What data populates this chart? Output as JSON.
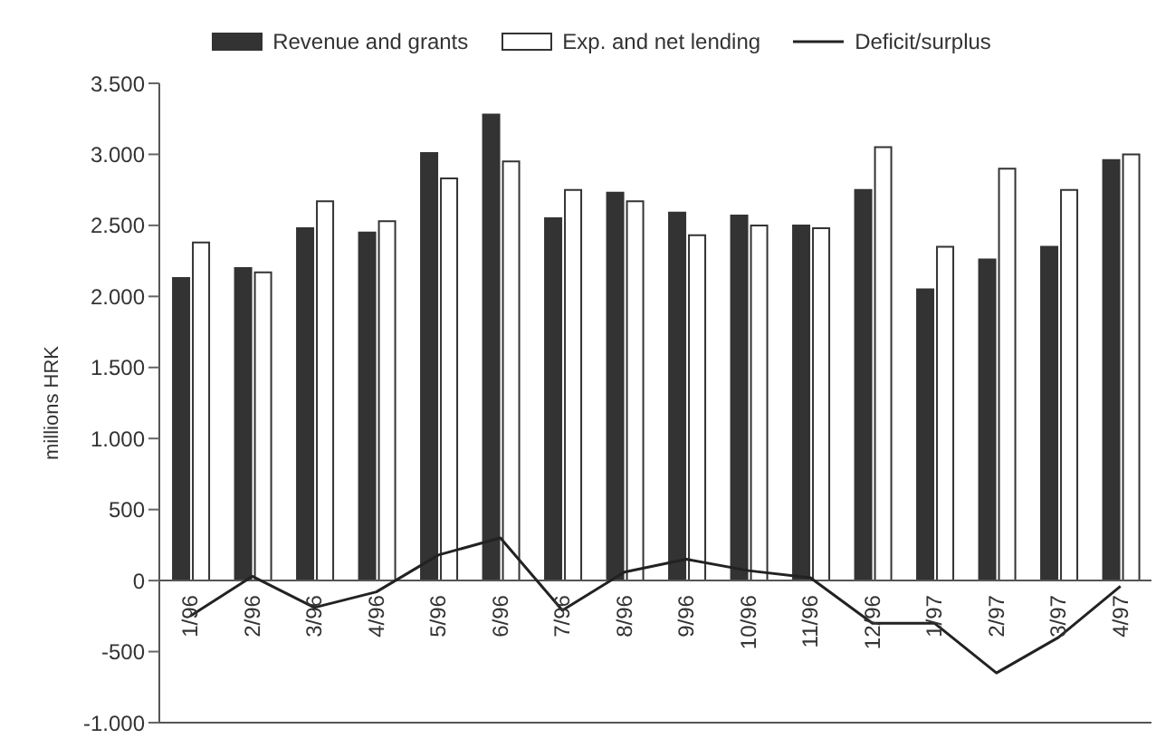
{
  "chart_data": {
    "type": "bar",
    "ylabel": "millions HRK",
    "categories": [
      "1/96",
      "2/96",
      "3/96",
      "4/96",
      "5/96",
      "6/96",
      "7/96",
      "8/96",
      "9/96",
      "10/96",
      "11/96",
      "12/96",
      "1/97",
      "2/97",
      "3/97",
      "4/97"
    ],
    "series": [
      {
        "name": "Revenue and grants",
        "color": "#333333",
        "values": [
          2130,
          2200,
          2480,
          2450,
          3010,
          3280,
          2550,
          2730,
          2590,
          2570,
          2500,
          2750,
          2050,
          2260,
          2350,
          2960
        ]
      },
      {
        "name": "Exp. and net lending",
        "color": "#ffffff",
        "values": [
          2380,
          2170,
          2670,
          2530,
          2830,
          2950,
          2750,
          2670,
          2430,
          2500,
          2480,
          3050,
          2350,
          2900,
          2750,
          3000
        ]
      },
      {
        "name": "Deficit/surplus",
        "type": "line",
        "color": "#222222",
        "values": [
          -250,
          30,
          -190,
          -80,
          180,
          300,
          -210,
          60,
          150,
          70,
          20,
          -300,
          -300,
          -650,
          -400,
          -40
        ]
      }
    ],
    "ylim": [
      -1000,
      3500
    ],
    "yticks": [
      {
        "value": -1000,
        "label": "-1.000"
      },
      {
        "value": -500,
        "label": "-500"
      },
      0,
      500,
      {
        "value": 1000,
        "label": "1.000"
      },
      {
        "value": 1500,
        "label": "1.500"
      },
      {
        "value": 2000,
        "label": "2.000"
      },
      {
        "value": 2500,
        "label": "2.500"
      },
      {
        "value": 3000,
        "label": "3.000"
      },
      {
        "value": 3500,
        "label": "3.500"
      }
    ],
    "legend": "top",
    "marker": "none",
    "line_style": "solid"
  }
}
